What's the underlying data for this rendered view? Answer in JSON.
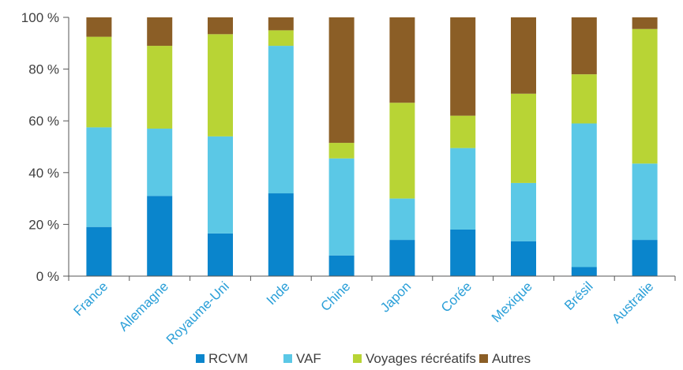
{
  "chart_data": {
    "type": "bar",
    "stacked": true,
    "percent": true,
    "categories": [
      "France",
      "Allemagne",
      "Royaume-Uni",
      "Inde",
      "Chine",
      "Japon",
      "Corée",
      "Mexique",
      "Brésil",
      "Australie"
    ],
    "series": [
      {
        "name": "RCVM",
        "color": "#0a85cc",
        "values": [
          19,
          31,
          16.5,
          32,
          8,
          14,
          18,
          13.5,
          3.5,
          14
        ]
      },
      {
        "name": "VAF",
        "color": "#5bc8e6",
        "values": [
          38.5,
          26,
          37.5,
          57,
          37.5,
          16,
          31.5,
          22.5,
          55.5,
          29.5
        ]
      },
      {
        "name": "Voyages récréatifs",
        "color": "#b8d435",
        "values": [
          35,
          32,
          39.5,
          6,
          6,
          37,
          12.5,
          34.5,
          19,
          52
        ]
      },
      {
        "name": "Autres",
        "color": "#8b5e26",
        "values": [
          7.5,
          11,
          6.5,
          5,
          48.5,
          33,
          38,
          29.5,
          22,
          4.5
        ]
      }
    ],
    "ylim": [
      0,
      100
    ],
    "yticks": [
      "0 %",
      "20 %",
      "40 %",
      "60 %",
      "80 %",
      "100 %"
    ],
    "legend_position": "bottom",
    "grid": false
  }
}
